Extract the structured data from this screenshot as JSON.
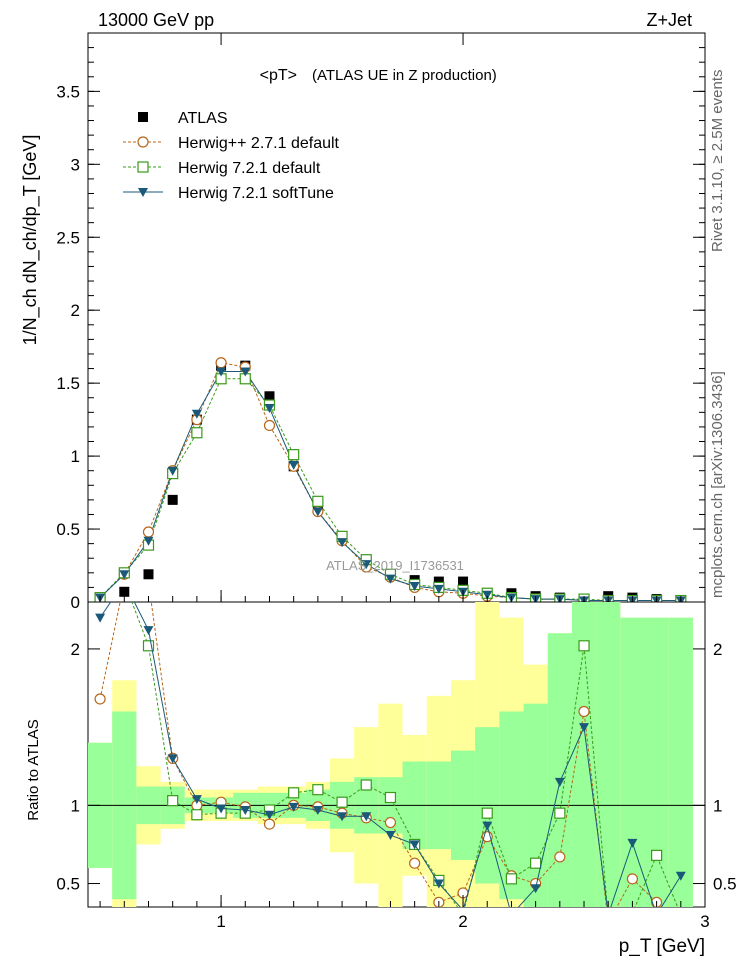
{
  "header": {
    "left": "13000 GeV pp",
    "right": "Z+Jet"
  },
  "side": {
    "top": "Rivet 3.1.10, ≥ 2.5M events",
    "bottom": "mcplots.cern.ch [arXiv:1306.3436]"
  },
  "chart_data": {
    "type": "scatter",
    "title": "<pT>",
    "subtitle": "(ATLAS UE in Z production)",
    "watermark": "ATLAS_2019_I1736531",
    "xlabel": "p_T [GeV]",
    "ylabel": "1/N_ch dN_ch/dp_T [GeV]",
    "ratio_ylabel": "Ratio to ATLAS",
    "xlim": [
      0.45,
      3.0
    ],
    "ylim": [
      0,
      3.9
    ],
    "ratio_ylim": [
      0.35,
      2.3
    ],
    "x_ticks": [
      "1",
      "2",
      "3"
    ],
    "y_ticks": [
      "0",
      "0.5",
      "1",
      "1.5",
      "2",
      "2.5",
      "3",
      "3.5"
    ],
    "ratio_ticks": [
      "0.5",
      "1",
      "2"
    ],
    "legend_position": "top-left",
    "x": [
      0.5,
      0.6,
      0.7,
      0.8,
      0.9,
      1.0,
      1.1,
      1.2,
      1.3,
      1.4,
      1.5,
      1.6,
      1.7,
      1.8,
      1.9,
      2.0,
      2.1,
      2.2,
      2.3,
      2.4,
      2.5,
      2.6,
      2.7,
      2.8,
      2.9
    ],
    "series": [
      {
        "name": "ATLAS",
        "color": "#000000",
        "marker": "square-filled",
        "values": [
          0.02,
          0.07,
          0.19,
          0.7,
          1.25,
          1.62,
          1.62,
          1.41,
          0.93,
          0.64,
          0.44,
          0.27,
          0.19,
          0.15,
          0.14,
          0.14,
          0.06,
          0.06,
          0.04,
          0.03,
          0.02,
          0.04,
          0.03,
          0.02,
          0.01
        ]
      },
      {
        "name": "Herwig++ 2.7.1 default",
        "color": "#b8661a",
        "marker": "circle-open",
        "values": [
          0.03,
          0.19,
          0.48,
          0.9,
          1.25,
          1.64,
          1.61,
          1.21,
          0.93,
          0.62,
          0.42,
          0.24,
          0.17,
          0.1,
          0.07,
          0.06,
          0.04,
          0.03,
          0.02,
          0.02,
          0.01,
          0.01,
          0.01,
          0.01,
          0.01
        ]
      },
      {
        "name": "Herwig 7.2.1 default",
        "color": "#3a9a1a",
        "marker": "square-open",
        "values": [
          0.03,
          0.2,
          0.39,
          0.88,
          1.16,
          1.53,
          1.53,
          1.35,
          1.01,
          0.69,
          0.45,
          0.29,
          0.19,
          0.12,
          0.1,
          0.08,
          0.06,
          0.03,
          0.02,
          0.02,
          0.02,
          0.01,
          0.01,
          0.01,
          0.01
        ]
      },
      {
        "name": "Herwig 7.2.1 softTune",
        "color": "#1a5a78",
        "marker": "triangle-down-filled",
        "values": [
          0.03,
          0.19,
          0.42,
          0.9,
          1.29,
          1.58,
          1.58,
          1.33,
          0.94,
          0.62,
          0.41,
          0.26,
          0.16,
          0.11,
          0.09,
          0.07,
          0.05,
          0.03,
          0.02,
          0.02,
          0.01,
          0.01,
          0.01,
          0.01,
          0.01
        ]
      }
    ],
    "ratio_series": [
      {
        "name": "Herwig++ 2.7.1 default",
        "values": [
          1.68,
          2.6,
          2.5,
          1.3,
          1.0,
          1.02,
          0.99,
          0.88,
          1.0,
          0.99,
          0.95,
          0.92,
          0.89,
          0.63,
          0.38,
          0.44,
          0.8,
          0.55,
          0.5,
          0.67,
          1.6,
          0.25,
          0.53,
          0.38,
          0.2
        ]
      },
      {
        "name": "Herwig 7.2.1 default",
        "values": [
          2.7,
          2.8,
          2.02,
          1.03,
          0.94,
          0.95,
          0.95,
          0.97,
          1.08,
          1.1,
          1.02,
          1.13,
          1.05,
          0.75,
          0.52,
          0.3,
          0.95,
          0.53,
          0.63,
          0.95,
          2.02,
          0.29,
          0.31,
          0.68,
          0.3
        ]
      },
      {
        "name": "Herwig 7.2.1 softTune",
        "values": [
          2.2,
          2.6,
          2.12,
          1.3,
          1.04,
          0.98,
          0.97,
          0.94,
          0.99,
          0.97,
          0.93,
          0.93,
          0.81,
          0.75,
          0.5,
          0.33,
          0.87,
          0.3,
          0.47,
          1.15,
          1.5,
          0.3,
          0.76,
          0.3,
          0.55
        ]
      }
    ],
    "ratio_bands": {
      "green_half_width": [
        0.4,
        0.6,
        0.12,
        0.12,
        0.05,
        0.05,
        0.08,
        0.08,
        0.08,
        0.1,
        0.15,
        0.18,
        0.18,
        0.28,
        0.28,
        0.35,
        0.5,
        0.6,
        0.65,
        1.1,
        1.3,
        1.3,
        1.2,
        1.2,
        1.2
      ],
      "yellow_half_width": [
        0.4,
        0.8,
        0.25,
        0.15,
        0.1,
        0.1,
        0.1,
        0.12,
        0.12,
        0.15,
        0.3,
        0.5,
        0.65,
        0.45,
        0.7,
        0.8,
        1.3,
        1.2,
        0.9,
        1.1,
        1.3,
        1.3,
        1.2,
        1.2,
        1.2
      ]
    }
  }
}
